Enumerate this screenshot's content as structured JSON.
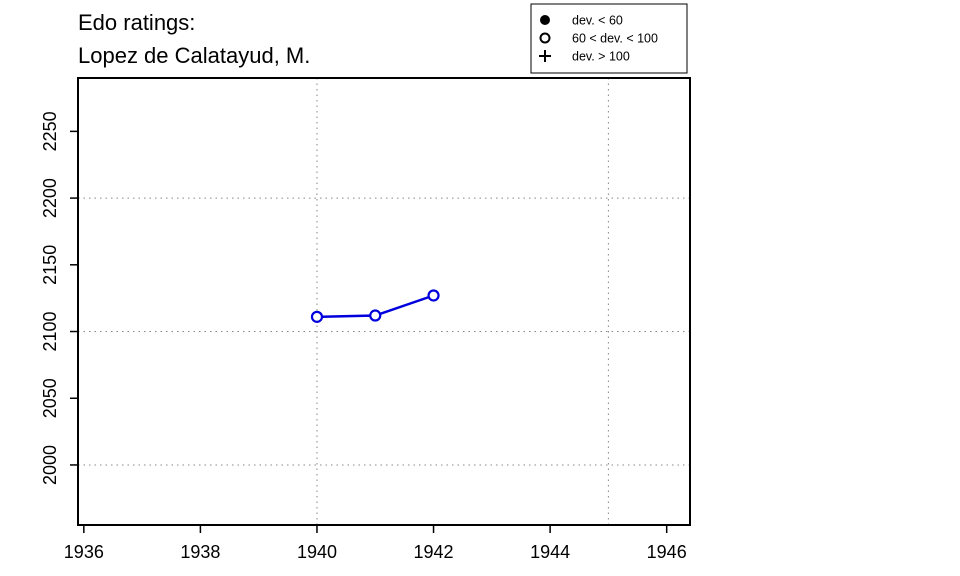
{
  "chart_data": {
    "type": "line",
    "title": "Edo ratings:",
    "subtitle": "Lopez de Calatayud, M.",
    "xlabel": "",
    "ylabel": "",
    "xlim": [
      1935.9,
      1946.4
    ],
    "ylim": [
      1955,
      2290
    ],
    "x_ticks": [
      1936,
      1938,
      1940,
      1942,
      1944,
      1946
    ],
    "y_ticks": [
      2000,
      2050,
      2100,
      2150,
      2200,
      2250
    ],
    "grid_x": [
      1940,
      1945
    ],
    "grid_y": [
      2000,
      2100,
      2200
    ],
    "grid": true,
    "legend_position": "top-right",
    "legend": [
      {
        "symbol": "filled-circle",
        "label": "dev. < 60"
      },
      {
        "symbol": "open-circle",
        "label": "60 < dev. < 100"
      },
      {
        "symbol": "plus",
        "label": "dev. > 100"
      }
    ],
    "series": [
      {
        "color": "#0000dd",
        "marker": "open-circle",
        "x": [
          1940,
          1941,
          1942
        ],
        "y": [
          2111,
          2112,
          2127
        ]
      }
    ]
  }
}
